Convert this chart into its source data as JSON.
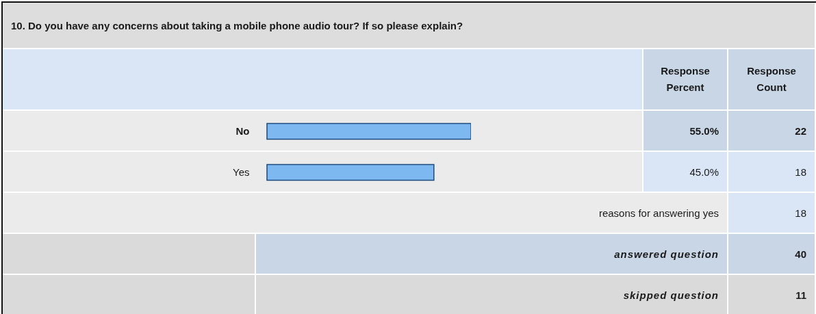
{
  "chart_data": {
    "type": "bar",
    "orientation": "horizontal",
    "title": "10. Do you have any concerns about taking a mobile phone audio tour? If so please explain?",
    "categories": [
      "No",
      "Yes"
    ],
    "values": [
      55.0,
      45.0
    ],
    "value_labels": [
      "55.0%",
      "45.0%"
    ],
    "color": "#7db8f0",
    "annotations": [
      "Response Percent",
      "Response Count",
      "22",
      "18",
      "reasons for answering yes",
      "18",
      "answered question",
      "40",
      "skipped question",
      "11"
    ]
  }
}
